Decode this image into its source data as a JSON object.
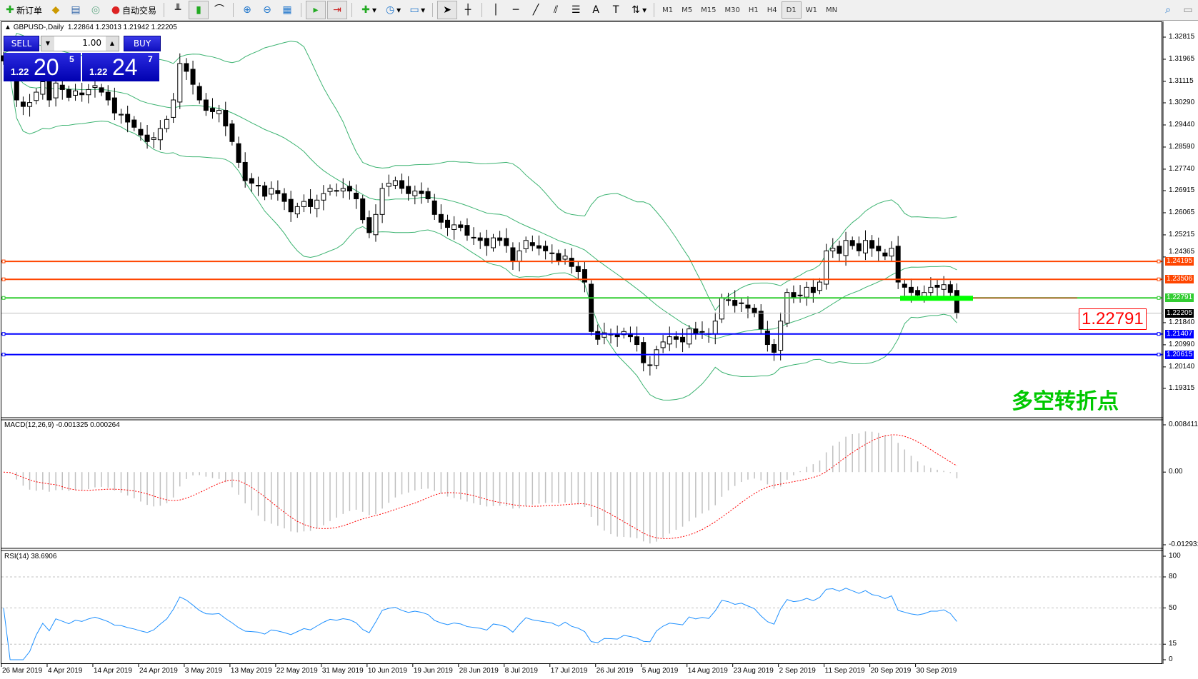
{
  "toolbar": {
    "new_order": "新订单",
    "auto_trading": "自动交易",
    "timeframes": [
      "M1",
      "M5",
      "M15",
      "M30",
      "H1",
      "H4",
      "D1",
      "W1",
      "MN"
    ],
    "active_timeframe": "D1"
  },
  "chart": {
    "header": "GBPUSD-,Daily",
    "ohlc": "1.22864 1.23013 1.21942 1.22205",
    "annotation": "多空转折点",
    "annotation_color": "#00c800",
    "callout_price": "1.22791"
  },
  "trade_panel": {
    "sell_label": "SELL",
    "buy_label": "BUY",
    "lot": "1.00",
    "sell": {
      "prefix": "1.22",
      "big": "20",
      "sup": "5"
    },
    "buy": {
      "prefix": "1.22",
      "big": "24",
      "sup": "7"
    }
  },
  "price_axis": [
    "1.32815",
    "1.31965",
    "1.31115",
    "1.30290",
    "1.29440",
    "1.28590",
    "1.27740",
    "1.26915",
    "1.26065",
    "1.25215",
    "1.24365",
    "1.21840",
    "1.20990",
    "1.20140",
    "1.19315"
  ],
  "levels": [
    {
      "price": 1.24195,
      "label": "1.24195",
      "color": "#ff4500"
    },
    {
      "price": 1.23506,
      "label": "1.23506",
      "color": "#ff4500"
    },
    {
      "price": 1.22791,
      "label": "1.22791",
      "color": "#32cd32"
    },
    {
      "price": 1.21407,
      "label": "1.21407",
      "color": "#0000ff"
    },
    {
      "price": 1.20615,
      "label": "1.20615",
      "color": "#0000ff"
    }
  ],
  "bid": {
    "price": 1.22205,
    "label": "1.22205"
  },
  "macd": {
    "header": "MACD(12,26,9) -0.001325 0.000264",
    "axis": [
      "0.008411",
      "0.00",
      "-0.012931"
    ],
    "max": 0.008411,
    "min": -0.012931
  },
  "rsi": {
    "header": "RSI(14) 38.6906",
    "axis": [
      "100",
      "80",
      "50",
      "15",
      "0"
    ],
    "levels": [
      80,
      50,
      15
    ]
  },
  "time_axis": [
    "26 Mar 2019",
    "4 Apr 2019",
    "14 Apr 2019",
    "24 Apr 2019",
    "3 May 2019",
    "13 May 2019",
    "22 May 2019",
    "31 May 2019",
    "10 Jun 2019",
    "19 Jun 2019",
    "28 Jun 2019",
    "8 Jul 2019",
    "17 Jul 2019",
    "26 Jul 2019",
    "5 Aug 2019",
    "14 Aug 2019",
    "23 Aug 2019",
    "2 Sep 2019",
    "11 Sep 2019",
    "20 Sep 2019",
    "30 Sep 2019"
  ],
  "closes": [
    1.319,
    1.317,
    1.304,
    1.3015,
    1.303,
    1.307,
    1.311,
    1.304,
    1.3105,
    1.308,
    1.305,
    1.3075,
    1.306,
    1.308,
    1.3095,
    1.307,
    1.304,
    1.299,
    1.2985,
    1.2955,
    1.2935,
    1.2905,
    1.288,
    1.2895,
    1.293,
    1.2965,
    1.304,
    1.318,
    1.315,
    1.31,
    1.304,
    1.3,
    1.2995,
    1.3,
    1.294,
    1.288,
    1.28,
    1.273,
    1.272,
    1.271,
    1.267,
    1.27,
    1.268,
    1.265,
    1.261,
    1.263,
    1.265,
    1.263,
    1.2655,
    1.268,
    1.27,
    1.269,
    1.27,
    1.269,
    1.266,
    1.258,
    1.253,
    1.26,
    1.27,
    1.272,
    1.273,
    1.27,
    1.268,
    1.269,
    1.268,
    1.266,
    1.26,
    1.257,
    1.255,
    1.256,
    1.255,
    1.252,
    1.251,
    1.25,
    1.248,
    1.251,
    1.25,
    1.248,
    1.242,
    1.246,
    1.25,
    1.248,
    1.247,
    1.246,
    1.245,
    1.242,
    1.244,
    1.24,
    1.238,
    1.234,
    1.215,
    1.212,
    1.2145,
    1.214,
    1.213,
    1.215,
    1.213,
    1.21,
    1.203,
    1.202,
    1.208,
    1.211,
    1.213,
    1.212,
    1.211,
    1.216,
    1.214,
    1.215,
    1.214,
    1.219,
    1.228,
    1.227,
    1.225,
    1.226,
    1.224,
    1.222,
    1.216,
    1.21,
    1.207,
    1.219,
    1.23,
    1.228,
    1.229,
    1.232,
    1.23,
    1.234,
    1.246,
    1.247,
    1.245,
    1.25,
    1.248,
    1.246,
    1.25,
    1.247,
    1.246,
    1.244,
    1.247,
    1.234,
    1.232,
    1.23,
    1.229,
    1.23,
    1.232,
    1.232,
    1.233,
    1.23,
    1.22205
  ]
}
